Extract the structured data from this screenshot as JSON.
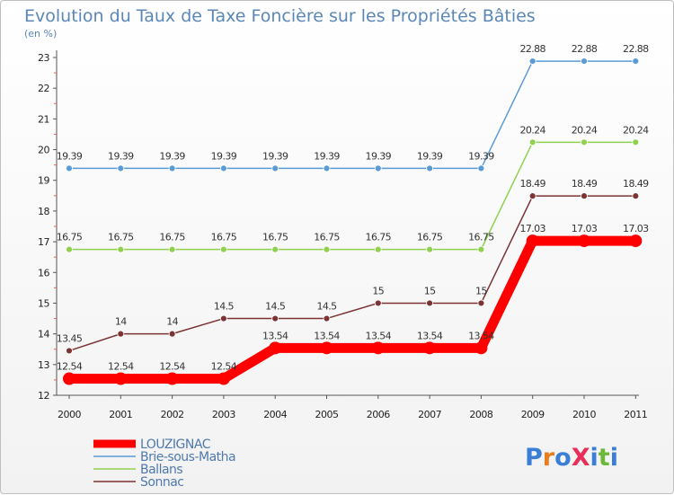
{
  "chart_data": {
    "type": "line",
    "title": "Evolution du Taux de Taxe Foncière sur les Propriétés Bâties",
    "subtitle": "(en %)",
    "x": [
      "2000",
      "2001",
      "2002",
      "2003",
      "2004",
      "2005",
      "2006",
      "2007",
      "2008",
      "2009",
      "2010",
      "2011"
    ],
    "ylim": [
      12,
      23
    ],
    "yticks": [
      "12",
      "13",
      "14",
      "15",
      "16",
      "17",
      "18",
      "19",
      "20",
      "21",
      "22",
      "23"
    ],
    "grid": false,
    "legend_position": "bottom-left",
    "series": [
      {
        "name": "LOUZIGNAC",
        "color": "#ff0000",
        "values": [
          12.54,
          12.54,
          12.54,
          12.54,
          13.54,
          13.54,
          13.54,
          13.54,
          13.54,
          17.03,
          17.03,
          17.03
        ],
        "labels": [
          "12.54",
          "12.54",
          "12.54",
          "12.54",
          "13.54",
          "13.54",
          "13.54",
          "13.54",
          "13.54",
          "17.03",
          "17.03",
          "17.03"
        ]
      },
      {
        "name": "Brie-sous-Matha",
        "color": "#5b9bd5",
        "values": [
          19.39,
          19.39,
          19.39,
          19.39,
          19.39,
          19.39,
          19.39,
          19.39,
          19.39,
          22.88,
          22.88,
          22.88
        ],
        "labels": [
          "19.39",
          "19.39",
          "19.39",
          "19.39",
          "19.39",
          "19.39",
          "19.39",
          "19.39",
          "19.39",
          "22.88",
          "22.88",
          "22.88"
        ]
      },
      {
        "name": "Ballans",
        "color": "#8fd14f",
        "values": [
          16.75,
          16.75,
          16.75,
          16.75,
          16.75,
          16.75,
          16.75,
          16.75,
          16.75,
          20.24,
          20.24,
          20.24
        ],
        "labels": [
          "16.75",
          "16.75",
          "16.75",
          "16.75",
          "16.75",
          "16.75",
          "16.75",
          "16.75",
          "16.75",
          "20.24",
          "20.24",
          "20.24"
        ]
      },
      {
        "name": "Sonnac",
        "color": "#7b3333",
        "values": [
          13.45,
          14,
          14,
          14.5,
          14.5,
          14.5,
          15,
          15,
          15,
          18.49,
          18.49,
          18.49
        ],
        "labels": [
          "13.45",
          "14",
          "14",
          "14.5",
          "14.5",
          "14.5",
          "15",
          "15",
          "15",
          "18.49",
          "18.49",
          "18.49"
        ]
      }
    ]
  },
  "logo": {
    "text": "ProXiti"
  }
}
